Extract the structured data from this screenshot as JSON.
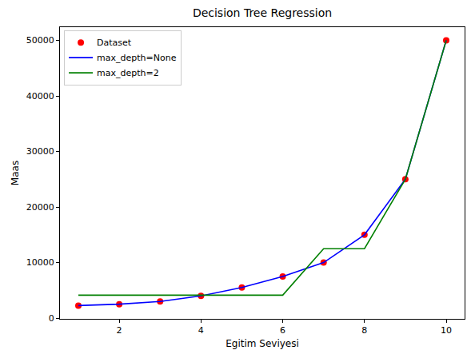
{
  "chart_data": {
    "type": "line",
    "title": "Decision Tree Regression",
    "x_label": "Egitim Seviyesi",
    "y_label": "Maas",
    "x": [
      1,
      2,
      3,
      4,
      5,
      6,
      7,
      8,
      9,
      10
    ],
    "series": [
      {
        "name": "Dataset",
        "type": "scatter",
        "color": "red",
        "marker": "circle",
        "values": [
          2250,
          2500,
          3000,
          4000,
          5500,
          7500,
          10000,
          15000,
          25000,
          50000
        ]
      },
      {
        "name": "max_depth=None",
        "type": "line",
        "color": "blue",
        "line_style": "solid",
        "values": [
          2250,
          2500,
          3000,
          4000,
          5500,
          7500,
          10000,
          15000,
          25000,
          50000
        ]
      },
      {
        "name": "max_depth=2",
        "type": "line",
        "color": "green",
        "line_style": "solid",
        "values": [
          4125,
          4125,
          4125,
          4125,
          4125,
          4125,
          12500,
          12500,
          25000,
          50000
        ]
      }
    ],
    "xlim": [
      0.55,
      10.45
    ],
    "xticks": [
      2,
      4,
      6,
      8,
      10
    ],
    "ylim": [
      -137.5,
      52387.5
    ],
    "yticks": [
      0,
      10000,
      20000,
      30000,
      40000,
      50000
    ],
    "grid": false,
    "legend": "upper left"
  }
}
